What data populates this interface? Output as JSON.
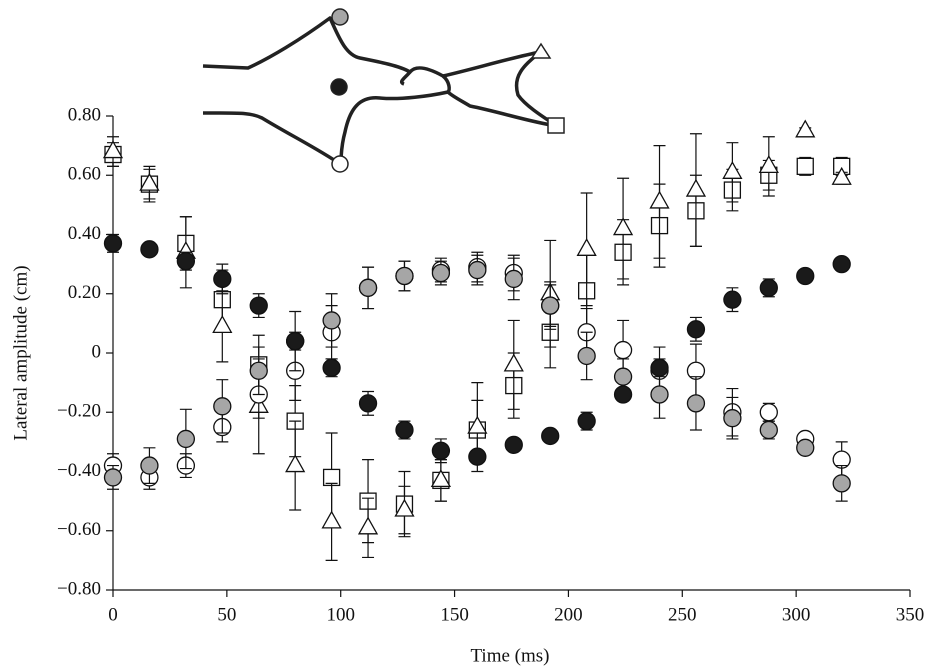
{
  "chart_data": {
    "type": "scatter",
    "xlabel": "Time (ms)",
    "ylabel": "Lateral amplitude (cm)",
    "xlim": [
      0,
      350
    ],
    "xticks": [
      0,
      50,
      100,
      150,
      200,
      250,
      300,
      350
    ],
    "ylim": [
      -0.8,
      0.8
    ],
    "yticks": [
      {
        "value": -0.8,
        "label": "−0.80"
      },
      {
        "value": -0.6,
        "label": "−0.60"
      },
      {
        "value": -0.4,
        "label": "−0.40"
      },
      {
        "value": -0.2,
        "label": "−0.20"
      },
      0,
      {
        "value": 0.2,
        "label": "0.20"
      },
      {
        "value": 0.4,
        "label": "0.40"
      },
      {
        "value": 0.6,
        "label": "0.60"
      },
      {
        "value": 0.8,
        "label": "0.80"
      }
    ],
    "x": [
      0,
      16,
      32,
      48,
      64,
      80,
      96,
      112,
      128,
      144,
      160,
      176,
      192,
      208,
      224,
      240,
      256,
      272,
      288,
      304,
      320
    ],
    "series": [
      {
        "marker": "square",
        "color": "#ffffff",
        "values": [
          0.67,
          0.57,
          0.37,
          0.18,
          -0.04,
          -0.23,
          -0.42,
          -0.5,
          -0.51,
          -0.43,
          -0.26,
          -0.11,
          0.07,
          0.21,
          0.34,
          0.43,
          0.48,
          0.55,
          0.6,
          0.63,
          0.63
        ],
        "errors": [
          0.04,
          0.05,
          0.09,
          0.1,
          0.1,
          0.12,
          0.15,
          0.14,
          0.11,
          0.07,
          0.1,
          0.11,
          0.12,
          0.12,
          0.11,
          0.14,
          0.12,
          0.07,
          0.05,
          0.03,
          0.03
        ]
      },
      {
        "marker": "triangle",
        "color": "#ffffff",
        "values": [
          0.68,
          0.57,
          0.34,
          0.09,
          -0.18,
          -0.38,
          -0.57,
          -0.59,
          -0.53,
          -0.43,
          -0.25,
          -0.04,
          0.2,
          0.35,
          0.42,
          0.51,
          0.55,
          0.61,
          0.63,
          0.75,
          0.59
        ],
        "errors": [
          0.05,
          0.06,
          0.12,
          0.12,
          0.16,
          0.15,
          0.13,
          0.1,
          0.08,
          0.07,
          0.15,
          0.15,
          0.18,
          0.19,
          0.17,
          0.19,
          0.19,
          0.1,
          0.1,
          0.01,
          0.02
        ]
      },
      {
        "marker": "circle",
        "color": "#ffffff",
        "values": [
          -0.38,
          -0.42,
          -0.38,
          -0.25,
          -0.14,
          -0.06,
          0.07,
          0.22,
          0.26,
          0.28,
          0.29,
          0.27,
          0.16,
          0.07,
          0.01,
          -0.06,
          -0.06,
          -0.2,
          -0.2,
          -0.29,
          -0.36
        ],
        "errors": [
          0.04,
          0.04,
          0.04,
          0.05,
          0.08,
          0.1,
          0.09,
          0.07,
          0.05,
          0.04,
          0.05,
          0.06,
          0.07,
          0.08,
          0.1,
          0.08,
          0.09,
          0.08,
          0.03,
          0.02,
          0.06
        ]
      },
      {
        "marker": "circle",
        "color": "#a6a6a6",
        "values": [
          -0.42,
          -0.38,
          -0.29,
          -0.18,
          -0.06,
          0.04,
          0.11,
          0.22,
          0.26,
          0.27,
          0.28,
          0.25,
          0.16,
          -0.01,
          -0.08,
          -0.14,
          -0.17,
          -0.22,
          -0.26,
          -0.32,
          -0.44
        ],
        "errors": [
          0.04,
          0.06,
          0.1,
          0.09,
          0.08,
          0.1,
          0.09,
          0.07,
          0.05,
          0.04,
          0.05,
          0.07,
          0.08,
          0.08,
          0.06,
          0.08,
          0.09,
          0.07,
          0.03,
          0.02,
          0.06
        ]
      },
      {
        "marker": "circle",
        "color": "#1a1a1a",
        "values": [
          0.37,
          0.35,
          0.31,
          0.25,
          0.16,
          0.04,
          -0.05,
          -0.17,
          -0.26,
          -0.33,
          -0.35,
          -0.31,
          -0.28,
          -0.23,
          -0.14,
          -0.05,
          0.08,
          0.18,
          0.22,
          0.26,
          0.3
        ],
        "errors": [
          0.03,
          0.02,
          0.03,
          0.05,
          0.04,
          0.03,
          0.03,
          0.04,
          0.03,
          0.04,
          0.02,
          0.02,
          0.02,
          0.03,
          0.02,
          0.03,
          0.04,
          0.04,
          0.03,
          0.02,
          0.02
        ]
      }
    ]
  }
}
